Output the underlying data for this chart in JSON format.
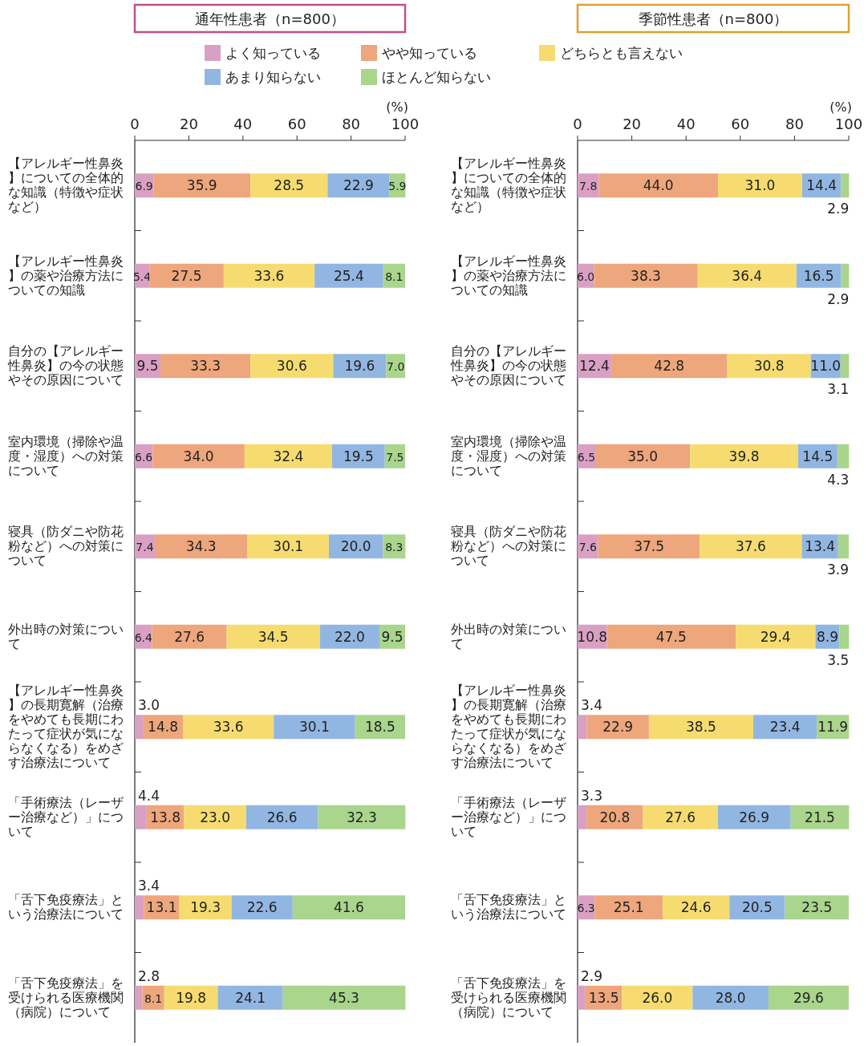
{
  "chart_data": [
    {
      "type": "bar",
      "orientation": "horizontal",
      "stacked": true,
      "title": "通年性患者（n=800）",
      "xlabel": "(%)",
      "xlim": [
        0,
        100
      ],
      "xticks": [
        0,
        20,
        40,
        60,
        80,
        100
      ],
      "legend": "top",
      "data_labels": true,
      "categories": [
        "【アレルギー性鼻炎】についての全体的な知識（特徴や症状など）",
        "【アレルギー性鼻炎】の薬や治療方法についての知識",
        "自分の【アレルギー性鼻炎】の今の状態やその原因について",
        "室内環境（掃除や温度・湿度）への対策について",
        "寝具（防ダニや防花粉など）への対策について",
        "外出時の対策について",
        "【アレルギー性鼻炎】の長期寛解（治療をやめても長期にわたって症状が気にならなくなる）をめざす治療法について",
        "「手術療法（レーザー治療など）」について",
        "「舌下免疫療法」という治療法について",
        "「舌下免疫療法」を受けられる医療機関（病院）について"
      ],
      "series": [
        {
          "name": "よく知っている",
          "color": "#d9a0c4",
          "values": [
            6.9,
            5.4,
            9.5,
            6.6,
            7.4,
            6.4,
            3.0,
            4.4,
            3.4,
            2.8
          ],
          "value_labels": [
            "6.9",
            "5.4",
            "9.5",
            "6.6",
            "7.4",
            "6.4",
            "3.0",
            "4.4",
            "3.4",
            "2.8"
          ]
        },
        {
          "name": "やや知っている",
          "color": "#eea67c",
          "values": [
            35.9,
            27.5,
            33.3,
            34.0,
            34.3,
            27.6,
            14.8,
            13.8,
            13.1,
            8.1
          ],
          "value_labels": [
            "35.9",
            "27.5",
            "33.3",
            "34.0",
            "34.3",
            "27.6",
            "14.8",
            "13.8",
            "13.1",
            "8.1"
          ]
        },
        {
          "name": "どちらとも言えない",
          "color": "#f6dc70",
          "values": [
            28.5,
            33.6,
            30.6,
            32.4,
            30.1,
            34.5,
            33.6,
            23.0,
            19.3,
            19.8
          ],
          "value_labels": [
            "28.5",
            "33.6",
            "30.6",
            "32.4",
            "30.1",
            "34.5",
            "33.6",
            "23.0",
            "19.3",
            "19.8"
          ]
        },
        {
          "name": "あまり知らない",
          "color": "#92b6e2",
          "values": [
            22.9,
            25.4,
            19.6,
            19.5,
            20.0,
            22.0,
            30.1,
            26.6,
            22.6,
            24.1
          ],
          "value_labels": [
            "22.9",
            "25.4",
            "19.6",
            "19.5",
            "20.0",
            "22.0",
            "30.1",
            "26.6",
            "22.6",
            "24.1"
          ]
        },
        {
          "name": "ほとんど知らない",
          "color": "#a9d58c",
          "values": [
            5.9,
            8.1,
            7.0,
            7.5,
            8.3,
            9.5,
            18.5,
            32.3,
            41.6,
            45.3
          ],
          "value_labels": [
            "5.9",
            "8.1",
            "7.0",
            "7.5",
            "8.3",
            "9.5",
            "18.5",
            "32.3",
            "41.6",
            "45.3"
          ]
        }
      ]
    },
    {
      "type": "bar",
      "orientation": "horizontal",
      "stacked": true,
      "title": "季節性患者（n=800）",
      "xlabel": "(%)",
      "xlim": [
        0,
        100
      ],
      "xticks": [
        0,
        20,
        40,
        60,
        80,
        100
      ],
      "data_labels": true,
      "categories": [
        "【アレルギー性鼻炎】についての全体的な知識（特徴や症状など）",
        "【アレルギー性鼻炎】の薬や治療方法についての知識",
        "自分の【アレルギー性鼻炎】の今の状態やその原因について",
        "室内環境（掃除や温度・湿度）への対策について",
        "寝具（防ダニや防花粉など）への対策について",
        "外出時の対策について",
        "【アレルギー性鼻炎】の長期寛解（治療をやめても長期にわたって症状が気にならなくなる）をめざす治療法について",
        "「手術療法（レーザー治療など）」について",
        "「舌下免疫療法」という治療法について",
        "「舌下免疫療法」を受けられる医療機関（病院）について"
      ],
      "series": [
        {
          "color": "#d9a0c4",
          "values": [
            7.8,
            6.0,
            12.4,
            6.5,
            7.6,
            10.8,
            3.4,
            3.3,
            6.3,
            2.9
          ],
          "value_labels": [
            "7.8",
            "6.0",
            "12.4",
            "6.5",
            "7.6",
            "10.8",
            "3.4",
            "3.3",
            "6.3",
            "2.9"
          ]
        },
        {
          "color": "#eea67c",
          "values": [
            44.0,
            38.3,
            42.8,
            35.0,
            37.5,
            47.5,
            22.9,
            20.8,
            25.1,
            13.5
          ],
          "value_labels": [
            "44.0",
            "38.3",
            "42.8",
            "35.0",
            "37.5",
            "47.5",
            "22.9",
            "20.8",
            "25.1",
            "13.5"
          ]
        },
        {
          "color": "#f6dc70",
          "values": [
            31.0,
            36.4,
            30.8,
            39.8,
            37.6,
            29.4,
            38.5,
            27.6,
            24.6,
            26.0
          ],
          "value_labels": [
            "31.0",
            "36.4",
            "30.8",
            "39.8",
            "37.6",
            "29.4",
            "38.5",
            "27.6",
            "24.6",
            "26.0"
          ]
        },
        {
          "color": "#92b6e2",
          "values": [
            14.4,
            16.5,
            11.0,
            14.5,
            13.4,
            8.9,
            23.4,
            26.9,
            20.5,
            28.0
          ],
          "value_labels": [
            "14.4",
            "16.5",
            "11.0",
            "14.5",
            "13.4",
            "8.9",
            "23.4",
            "26.9",
            "20.5",
            "28.0"
          ]
        },
        {
          "color": "#a9d58c",
          "values": [
            2.9,
            2.9,
            3.1,
            4.3,
            3.9,
            3.5,
            11.9,
            21.5,
            23.5,
            29.6
          ],
          "value_labels": [
            "2.9",
            "2.9",
            "3.1",
            "4.3",
            "3.9",
            "3.5",
            "11.9",
            "21.5",
            "23.5",
            "29.6"
          ]
        }
      ]
    }
  ]
}
